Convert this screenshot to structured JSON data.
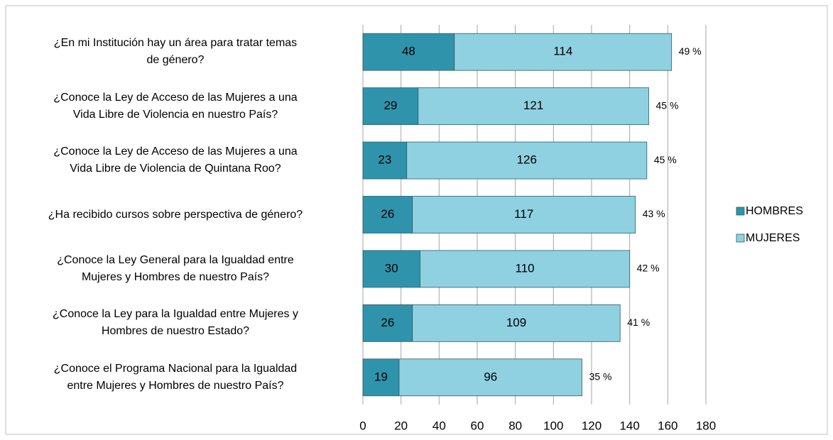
{
  "chart_data": {
    "type": "stacked_barh",
    "categories": [
      "¿En mi Institución hay un área para tratar temas\nde género?",
      "¿Conoce la Ley de Acceso de las Mujeres a una\nVida Libre de Violencia en nuestro País?",
      "¿Conoce la Ley de Acceso de las Mujeres a una\nVida Libre de Violencia de Quintana Roo?",
      "¿Ha recibido cursos sobre perspectiva de género?",
      "¿Conoce la Ley General para la Igualdad entre\nMujeres y Hombres de nuestro País?",
      "¿Conoce la Ley para la Igualdad entre Mujeres y\nHombres de nuestro Estado?",
      "¿Conoce el Programa Nacional para la Igualdad\nentre  Mujeres y Hombres de nuestro País?"
    ],
    "series": [
      {
        "name": "HOMBRES",
        "color": "#2f93ab",
        "values": [
          48,
          29,
          23,
          26,
          30,
          26,
          19
        ]
      },
      {
        "name": "MUJERES",
        "color": "#8fd0e1",
        "values": [
          114,
          121,
          126,
          117,
          110,
          109,
          96
        ]
      }
    ],
    "percent_labels": [
      "49 %",
      "45 %",
      "45 %",
      "43 %",
      "42 %",
      "41 %",
      "35 %"
    ],
    "xlim": [
      0,
      180
    ],
    "xticks": [
      0,
      20,
      40,
      60,
      80,
      100,
      120,
      140,
      160,
      180
    ],
    "grid": true,
    "legend": "right"
  }
}
